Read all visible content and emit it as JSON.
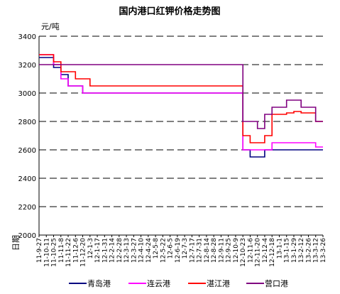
{
  "chart_data": {
    "type": "line",
    "title": "国内港口红钾价格走势图",
    "ylabel": "元/吨",
    "xlabel": "日期",
    "ylim": [
      2000,
      3400
    ],
    "yticks": [
      2000,
      2200,
      2400,
      2600,
      2800,
      3000,
      3200,
      3400
    ],
    "grid": true,
    "legend_position": "bottom",
    "categories": [
      "11-9-27",
      "11-10-11",
      "11-10-25",
      "11-11-8",
      "11-11-22",
      "11-12-6",
      "11-12-20",
      "12-1-3",
      "12-1-17",
      "12-1-31",
      "12-2-14",
      "12-2-28",
      "12-3-13",
      "12-3-27",
      "12-4-10",
      "12-4-24",
      "12-5-8",
      "12-5-22",
      "12-6-5",
      "12-6-19",
      "12-7-3",
      "12-7-17",
      "12-7-31",
      "12-8-14",
      "12-8-28",
      "12-9-11",
      "12-9-25",
      "12-10-9",
      "12-10-23",
      "12-11-6",
      "12-11-20",
      "12-12-4",
      "12-12-18",
      "13-1-1",
      "13-1-15",
      "13-1-29",
      "13-2-12",
      "13-2-26",
      "13-3-12",
      "13-3-26"
    ],
    "series": [
      {
        "name": "青岛港",
        "color": "#000080",
        "values": [
          3250,
          3250,
          3180,
          3130,
          3050,
          3050,
          3000,
          3000,
          3000,
          3000,
          3000,
          3000,
          3000,
          3000,
          3000,
          3000,
          3000,
          3000,
          3000,
          3000,
          3000,
          3000,
          3000,
          3000,
          3000,
          3000,
          3000,
          3000,
          2600,
          2550,
          2550,
          2600,
          2600,
          2600,
          2600,
          2600,
          2600,
          2600,
          2600,
          2600
        ]
      },
      {
        "name": "连云港",
        "color": "#ff00ff",
        "values": [
          3270,
          3270,
          3200,
          3100,
          3050,
          3050,
          3000,
          3000,
          3000,
          3000,
          3000,
          3000,
          3000,
          3000,
          3000,
          3000,
          3000,
          3000,
          3000,
          3000,
          3000,
          3000,
          3000,
          3000,
          3000,
          3000,
          3000,
          3000,
          2600,
          2600,
          2600,
          2600,
          2650,
          2650,
          2650,
          2650,
          2650,
          2650,
          2620,
          2620
        ]
      },
      {
        "name": "湛江港",
        "color": "#ff0000",
        "values": [
          3270,
          3270,
          3220,
          3150,
          3150,
          3100,
          3100,
          3050,
          3050,
          3050,
          3050,
          3050,
          3050,
          3050,
          3050,
          3050,
          3050,
          3050,
          3050,
          3050,
          3050,
          3050,
          3050,
          3050,
          3050,
          3050,
          3050,
          3050,
          2700,
          2650,
          2650,
          2700,
          2850,
          2850,
          2860,
          2870,
          2860,
          2860,
          2800,
          2800
        ]
      },
      {
        "name": "营口港",
        "color": "#800080",
        "values": [
          3200,
          3200,
          3200,
          3200,
          3200,
          3200,
          3200,
          3200,
          3200,
          3200,
          3200,
          3200,
          3200,
          3200,
          3200,
          3200,
          3200,
          3200,
          3200,
          3200,
          3200,
          3200,
          3200,
          3200,
          3200,
          3200,
          3200,
          3200,
          2800,
          2800,
          2750,
          2850,
          2900,
          2900,
          2950,
          2950,
          2900,
          2900,
          2800,
          2800
        ]
      }
    ]
  }
}
